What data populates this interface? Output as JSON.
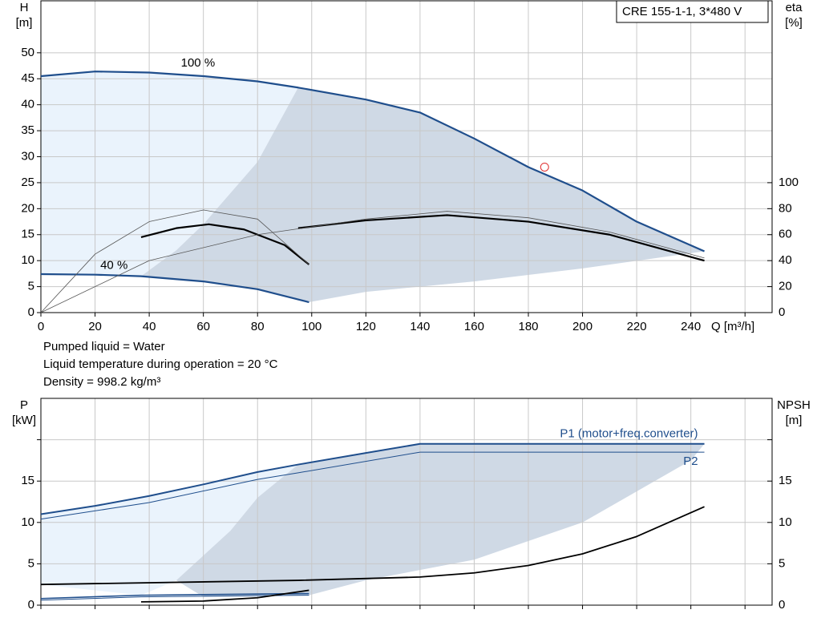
{
  "info": [
    "Pumped liquid = Water",
    "Liquid temperature during operation = 20 °C",
    "Density = 998.2 kg/m³"
  ],
  "chart_data": [
    {
      "type": "line",
      "ylabel": [
        "H",
        "[m]"
      ],
      "y2label": [
        "eta",
        "[%]"
      ],
      "xlabel": "Q [m³/h]",
      "legend": "CRE 155-1-1, 3*480 V",
      "grid": true,
      "xlim": [
        0,
        270
      ],
      "xticks": [
        0,
        20,
        40,
        60,
        80,
        100,
        120,
        140,
        160,
        180,
        200,
        220,
        240,
        {
          "value": 260,
          "label": null
        }
      ],
      "ylim": [
        0,
        60
      ],
      "yticks": [
        0,
        5,
        10,
        15,
        20,
        25,
        30,
        35,
        40,
        45,
        50
      ],
      "y2lim": [
        0,
        240
      ],
      "y2ticks": [
        0,
        20,
        40,
        60,
        80,
        100
      ],
      "regions": [
        {
          "color": "#eaf3fc",
          "x": [
            0,
            20,
            40,
            60,
            80,
            95,
            80,
            60,
            50,
            37,
            20,
            0
          ],
          "values": [
            45.5,
            46.4,
            46.2,
            45.5,
            44.5,
            43.3,
            29,
            17,
            12,
            7,
            7.3,
            7.4
          ]
        },
        {
          "color": "#cfd9e5",
          "x": [
            95,
            120,
            140,
            160,
            180,
            200,
            220,
            245,
            200,
            160,
            120,
            99,
            80,
            60,
            37,
            50,
            60,
            80,
            95
          ],
          "values": [
            43.3,
            41,
            38.5,
            33.5,
            28,
            23.5,
            17.5,
            11.8,
            8.5,
            6,
            4,
            2,
            4.5,
            6,
            7,
            12,
            17,
            29,
            43.3
          ]
        }
      ],
      "series": [
        {
          "color": "#1f4e8c",
          "width": 2.2,
          "x": [
            0,
            20,
            40,
            60,
            80,
            95,
            120,
            140,
            160,
            180,
            200,
            220,
            245
          ],
          "values": [
            45.5,
            46.4,
            46.2,
            45.5,
            44.5,
            43.3,
            41,
            38.5,
            33.5,
            28,
            23.5,
            17.5,
            11.8
          ]
        },
        {
          "color": "#1f4e8c",
          "width": 2.2,
          "x": [
            0,
            20,
            37,
            60,
            80,
            99
          ],
          "values": [
            7.4,
            7.3,
            7,
            6,
            4.5,
            2
          ]
        },
        {
          "color": "#000000",
          "width": 2.2,
          "axis": "y2",
          "x": [
            95,
            120,
            150,
            180,
            210,
            245
          ],
          "values": [
            65,
            71,
            75,
            70,
            60,
            40
          ]
        },
        {
          "color": "#000000",
          "width": 2.2,
          "axis": "y2",
          "x": [
            37,
            50,
            62,
            75,
            90,
            99
          ],
          "values": [
            58,
            65,
            68,
            64,
            52,
            37
          ]
        },
        {
          "color": "#555555",
          "width": 0.8,
          "axis": "y2",
          "x": [
            0,
            20,
            40,
            60,
            80,
            99
          ],
          "values": [
            0,
            45,
            70,
            79,
            72,
            37
          ]
        },
        {
          "color": "#555555",
          "width": 0.8,
          "axis": "y2",
          "x": [
            0,
            40,
            80,
            120,
            150,
            180,
            210,
            245
          ],
          "values": [
            0,
            40,
            60,
            72,
            78,
            73,
            62,
            42
          ]
        }
      ],
      "annotations": [
        {
          "text": "100 %",
          "x": 58,
          "y": 48
        },
        {
          "text": "40 %",
          "x": 27,
          "y": 9
        }
      ],
      "marker": {
        "x": 186,
        "y": 28,
        "color": "#e03030"
      }
    },
    {
      "type": "line",
      "ylabel": [
        "P",
        "[kW]"
      ],
      "y2label": [
        "NPSH",
        "[m]"
      ],
      "grid": true,
      "xlim": [
        0,
        270
      ],
      "xticks": [
        {
          "value": 0,
          "label": null
        },
        {
          "value": 20,
          "label": null
        },
        {
          "value": 40,
          "label": null
        },
        {
          "value": 60,
          "label": null
        },
        {
          "value": 80,
          "label": null
        },
        {
          "value": 100,
          "label": null
        },
        {
          "value": 120,
          "label": null
        },
        {
          "value": 140,
          "label": null
        },
        {
          "value": 160,
          "label": null
        },
        {
          "value": 180,
          "label": null
        },
        {
          "value": 200,
          "label": null
        },
        {
          "value": 220,
          "label": null
        },
        {
          "value": 240,
          "label": null
        },
        {
          "value": 260,
          "label": null
        }
      ],
      "ylim": [
        0,
        25
      ],
      "yticks": [
        0,
        5,
        10,
        15,
        {
          "value": 20,
          "label": null
        }
      ],
      "y2lim": [
        0,
        25
      ],
      "y2ticks": [
        0,
        5,
        10,
        15,
        {
          "value": 20,
          "label": null
        }
      ],
      "regions": [
        {
          "color": "#eaf3fc",
          "x": [
            0,
            20,
            40,
            60,
            80,
            95,
            80,
            70,
            50,
            37,
            0
          ],
          "values": [
            11,
            12,
            13.2,
            14.6,
            16.1,
            17,
            13,
            9,
            3,
            1.2,
            2.5
          ]
        },
        {
          "color": "#cfd9e5",
          "x": [
            95,
            120,
            140,
            160,
            200,
            245,
            240,
            200,
            160,
            120,
            99,
            60,
            50,
            70,
            80,
            95
          ],
          "values": [
            17,
            18.4,
            19.5,
            19.5,
            19.5,
            19.5,
            17.5,
            10,
            5.5,
            3,
            1.2,
            1,
            3,
            9,
            13,
            17
          ]
        }
      ],
      "series": [
        {
          "name": "P1 (motor+freq.converter)",
          "color": "#1f4e8c",
          "width": 2,
          "x": [
            0,
            20,
            40,
            60,
            80,
            95,
            120,
            140,
            160,
            200,
            245
          ],
          "values": [
            11,
            12,
            13.2,
            14.6,
            16.1,
            17,
            18.4,
            19.5,
            19.5,
            19.5,
            19.5
          ]
        },
        {
          "name": "P2",
          "color": "#1f4e8c",
          "width": 1,
          "x": [
            0,
            40,
            80,
            95,
            140,
            245
          ],
          "values": [
            10.4,
            12.4,
            15.2,
            16,
            18.5,
            18.5
          ]
        },
        {
          "color": "#1f4e8c",
          "width": 1.6,
          "x": [
            0,
            37,
            99
          ],
          "values": [
            0.8,
            1.2,
            1.4
          ]
        },
        {
          "color": "#1f4e8c",
          "width": 1,
          "x": [
            0,
            37,
            99
          ],
          "values": [
            0.6,
            1,
            1.2
          ]
        },
        {
          "color": "#000000",
          "width": 1.8,
          "axis": "y2",
          "x": [
            0,
            95,
            140,
            160,
            180,
            200,
            220,
            245
          ],
          "values": [
            2.5,
            3,
            3.4,
            3.9,
            4.8,
            6.2,
            8.3,
            11.9
          ]
        },
        {
          "color": "#000000",
          "width": 1.8,
          "axis": "y2",
          "x": [
            37,
            60,
            80,
            99
          ],
          "values": [
            0.4,
            0.5,
            0.9,
            1.8
          ]
        }
      ]
    }
  ]
}
